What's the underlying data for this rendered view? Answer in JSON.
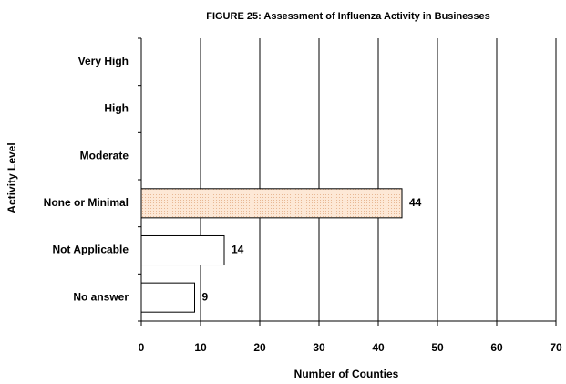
{
  "chart_data": {
    "type": "hbar",
    "title": "FIGURE  25: Assessment of Influenza Activity in Businesses",
    "x_label": "Number of Counties",
    "y_label": "Activity Level",
    "categories": [
      "Very High",
      "High",
      "Moderate",
      "None or Minimal",
      "Not Applicable",
      "No answer"
    ],
    "values": [
      null,
      null,
      null,
      44,
      14,
      9
    ],
    "colors": [
      "#ffffff",
      "#ffffff",
      "#ffffff",
      "#fbe3cf",
      "#ffffff",
      "#ffffff"
    ],
    "xlim": [
      0,
      70
    ],
    "xticks": [
      0,
      10,
      20,
      30,
      40,
      50,
      60,
      70
    ],
    "grid": true
  }
}
